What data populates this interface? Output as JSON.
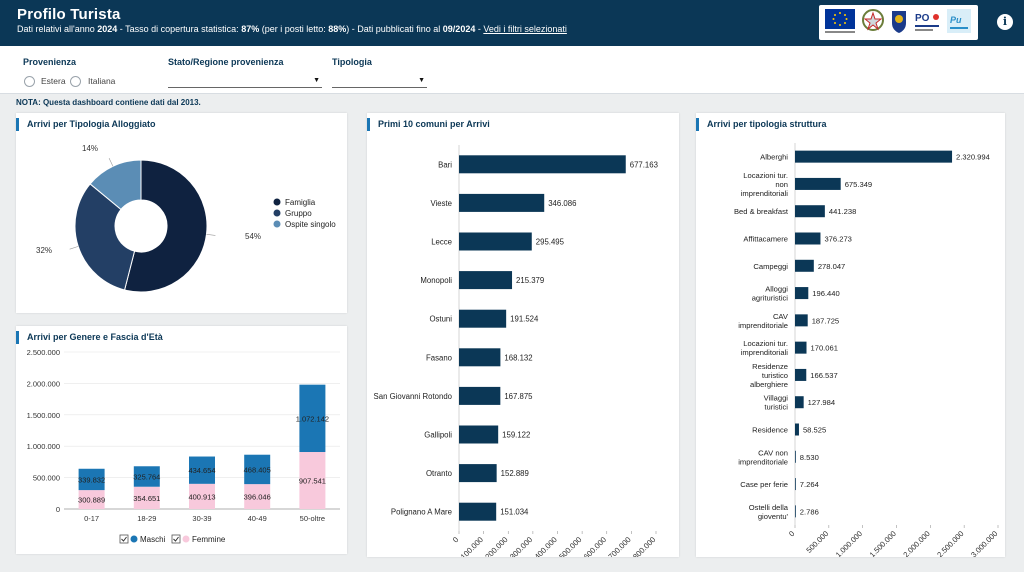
{
  "header": {
    "title": "Profilo Turista",
    "sub_prefix": "Dati relativi all'anno ",
    "year": "2024",
    "sub_mid1": " - Tasso di copertura statistica: ",
    "coverage": "87%",
    "sub_mid2": " (per i posti letto: ",
    "coverage_beds": "88%",
    "sub_mid3": ") - Dati pubblicati fino al ",
    "published": "09/2024",
    "sub_mid4": " - ",
    "filters_link": "Vedi i filtri selezionati",
    "info_glyph": "i"
  },
  "filters": {
    "provenienza_label": "Provenienza",
    "options": [
      "Estera",
      "Italiana"
    ],
    "stato_label": "Stato/Regione provenienza",
    "tipologia_label": "Tipologia"
  },
  "note": "NOTA: Questa dashboard contiene dati dal 2013.",
  "colors": {
    "navy": "#0b3756",
    "blue": "#1b76b4",
    "pink": "#f8c9dc",
    "mid": "#233f65",
    "light": "#5b8db5",
    "dark": "#0f2240"
  },
  "chart_data": [
    {
      "type": "pie",
      "title": "Arrivi per Tipologia Alloggiato",
      "labels": [
        "Famiglia",
        "Gruppo",
        "Ospite singolo"
      ],
      "values": [
        54,
        32,
        14
      ],
      "value_labels": [
        "54%",
        "32%",
        "14%"
      ],
      "colors": [
        "#0f2240",
        "#233f65",
        "#5b8db5"
      ],
      "legend": "right"
    },
    {
      "type": "bar",
      "stacked": true,
      "title": "Arrivi per Genere e Fascia d'Età",
      "categories": [
        "0-17",
        "18-29",
        "30-39",
        "40-49",
        "50-oltre"
      ],
      "series": [
        {
          "name": "Femmine",
          "values": [
            300889,
            354651,
            400913,
            396046,
            907541
          ],
          "labels": [
            "300.889",
            "354.651",
            "400.913",
            "396.046",
            "907.541"
          ],
          "color": "#f8c9dc"
        },
        {
          "name": "Maschi",
          "values": [
            339832,
            325764,
            434654,
            468405,
            1072142
          ],
          "labels": [
            "339.832",
            "325.764",
            "434.654",
            "468.405",
            "1.072.142"
          ],
          "color": "#1b76b4"
        }
      ],
      "ylim": [
        0,
        2500000
      ],
      "yticks": [
        "0",
        "500.000",
        "1.000.000",
        "1.500.000",
        "2.000.000",
        "2.500.000"
      ],
      "legend": "bottom"
    },
    {
      "type": "bar",
      "orientation": "horizontal",
      "title": "Primi 10 comuni per Arrivi",
      "categories": [
        "Bari",
        "Vieste",
        "Lecce",
        "Monopoli",
        "Ostuni",
        "Fasano",
        "San Giovanni Rotondo",
        "Gallipoli",
        "Otranto",
        "Polignano A Mare"
      ],
      "values": [
        677163,
        346086,
        295495,
        215379,
        191524,
        168132,
        167875,
        159122,
        152889,
        151034
      ],
      "value_labels": [
        "677.163",
        "346.086",
        "295.495",
        "215.379",
        "191.524",
        "168.132",
        "167.875",
        "159.122",
        "152.889",
        "151.034"
      ],
      "xlim": [
        0,
        800000
      ],
      "xticks": [
        "0",
        "100.000",
        "200.000",
        "300.000",
        "400.000",
        "500.000",
        "600.000",
        "700.000",
        "800.000"
      ],
      "color": "#0b3756"
    },
    {
      "type": "bar",
      "orientation": "horizontal",
      "title": "Arrivi per tipologia struttura",
      "categories": [
        "Alberghi",
        "Locazioni tur. non imprenditoriali",
        "Bed & breakfast",
        "Affittacamere",
        "Campeggi",
        "Alloggi agrituristici",
        "CAV imprenditoriale",
        "Locazioni tur. imprenditoriali",
        "Residenze turistico alberghiere",
        "Villaggi turistici",
        "Residence",
        "CAV non imprenditoriale",
        "Case per ferie",
        "Ostelli della gioventu'"
      ],
      "values": [
        2320994,
        675349,
        441238,
        376273,
        278047,
        196440,
        187725,
        170061,
        166537,
        127984,
        58525,
        8530,
        7264,
        2786
      ],
      "value_labels": [
        "2.320.994",
        "675.349",
        "441.238",
        "376.273",
        "278.047",
        "196.440",
        "187.725",
        "170.061",
        "166.537",
        "127.984",
        "58.525",
        "8.530",
        "7.264",
        "2.786"
      ],
      "xlim": [
        0,
        3000000
      ],
      "xticks": [
        "0",
        "500.000",
        "1.000.000",
        "1.500.000",
        "2.000.000",
        "2.500.000",
        "3.000.000"
      ],
      "color": "#0b3756"
    }
  ]
}
